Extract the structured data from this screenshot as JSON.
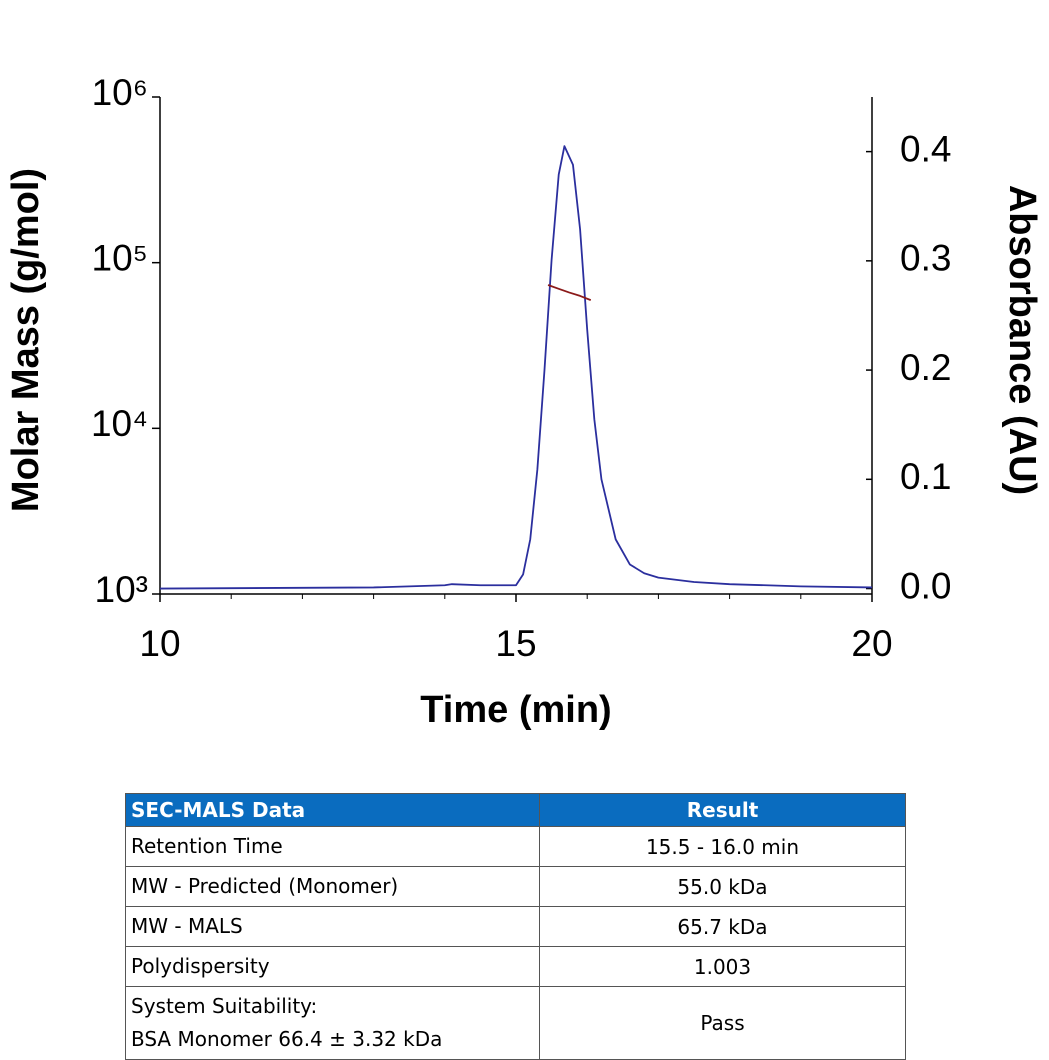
{
  "chart_data": {
    "type": "line",
    "xlabel": "Time (min)",
    "ylabel": "Molar Mass (g/mol)",
    "y2label": "Absorbance (AU)",
    "xlim": [
      10,
      20
    ],
    "xticks": [
      10,
      15,
      20
    ],
    "xminorticks": [
      11,
      12,
      13,
      14,
      16,
      17,
      18,
      19
    ],
    "ylim": [
      1000,
      1000000
    ],
    "ylog": true,
    "yticks": [
      {
        "value": 1000,
        "label": "10³"
      },
      {
        "value": 10000,
        "label": "10⁴"
      },
      {
        "value": 100000,
        "label": "10⁵"
      },
      {
        "value": 1000000,
        "label": "10⁶"
      }
    ],
    "y2lim": [
      -0.005,
      0.45
    ],
    "y2ticks": [
      {
        "value": 0,
        "label": "0.0"
      },
      0.1,
      0.2,
      0.3,
      0.4
    ],
    "grid": false,
    "series": [
      {
        "name": "Absorbance",
        "color": "#2b2f9e",
        "axis": "y2",
        "x": [
          10,
          13,
          14,
          14.1,
          14.5,
          15,
          15.1,
          15.2,
          15.3,
          15.4,
          15.5,
          15.6,
          15.68,
          15.8,
          15.9,
          16.0,
          16.1,
          16.2,
          16.4,
          16.6,
          16.8,
          17,
          17.5,
          18,
          19,
          20
        ],
        "values": [
          0.0,
          0.001,
          0.003,
          0.004,
          0.003,
          0.003,
          0.013,
          0.045,
          0.109,
          0.2,
          0.301,
          0.379,
          0.405,
          0.388,
          0.329,
          0.237,
          0.155,
          0.1,
          0.045,
          0.022,
          0.014,
          0.01,
          0.006,
          0.004,
          0.002,
          0.001
        ]
      },
      {
        "name": "Molar Mass",
        "color": "#8b1a1a",
        "axis": "y",
        "x": [
          15.45,
          15.6,
          15.75,
          15.9,
          16.05
        ],
        "values": [
          73300,
          69500,
          66000,
          63000,
          59400
        ]
      }
    ]
  },
  "table": {
    "header": [
      "SEC-MALS Data",
      "Result"
    ],
    "rows": [
      [
        [
          "Retention Time"
        ],
        "15.5 - 16.0 min"
      ],
      [
        [
          "MW - Predicted (Monomer)"
        ],
        "55.0 kDa"
      ],
      [
        [
          "MW - MALS"
        ],
        "65.7 kDa"
      ],
      [
        [
          "Polydispersity"
        ],
        "1.003"
      ],
      [
        [
          "System Suitability:",
          "BSA Monomer 66.4 ± 3.32 kDa"
        ],
        "Pass"
      ]
    ]
  }
}
